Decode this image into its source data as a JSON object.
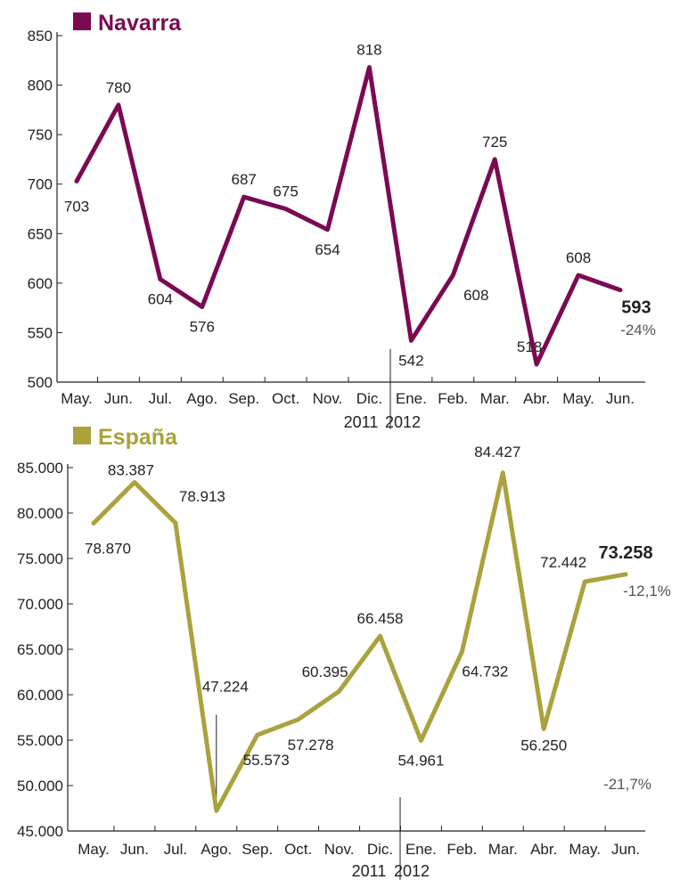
{
  "chart_data": [
    {
      "type": "line",
      "title": "Navarra",
      "color": "#7a0a52",
      "categories": [
        "May.",
        "Jun.",
        "Jul.",
        "Ago.",
        "Sep.",
        "Oct.",
        "Nov.",
        "Dic.",
        "Ene.",
        "Feb.",
        "Mar.",
        "Abr.",
        "May.",
        "Jun."
      ],
      "values": [
        703,
        780,
        604,
        576,
        687,
        675,
        654,
        818,
        542,
        608,
        725,
        518,
        608,
        593
      ],
      "value_labels": [
        "703",
        "780",
        "604",
        "576",
        "687",
        "675",
        "654",
        "818",
        "542",
        "608",
        "725",
        "518",
        "608",
        "593"
      ],
      "yticks": [
        500,
        550,
        600,
        650,
        700,
        750,
        800,
        850
      ],
      "ytick_labels": [
        "500",
        "550",
        "600",
        "650",
        "700",
        "750",
        "800",
        "850"
      ],
      "ylim": [
        500,
        850
      ],
      "years": [
        "2011",
        "2012"
      ],
      "change_labels": [
        "-24%"
      ]
    },
    {
      "type": "line",
      "title": "España",
      "color": "#aaa23c",
      "categories": [
        "May.",
        "Jun.",
        "Jul.",
        "Ago.",
        "Sep.",
        "Oct.",
        "Nov.",
        "Dic.",
        "Ene.",
        "Feb.",
        "Mar.",
        "Abr.",
        "May.",
        "Jun."
      ],
      "values": [
        78870,
        83387,
        78913,
        47224,
        55573,
        57278,
        60395,
        66458,
        54961,
        64732,
        84427,
        56250,
        72442,
        73258
      ],
      "value_labels": [
        "78.870",
        "83.387",
        "78.913",
        "47.224",
        "55.573",
        "57.278",
        "60.395",
        "66.458",
        "54.961",
        "64.732",
        "84.427",
        "56.250",
        "72.442",
        "73.258"
      ],
      "yticks": [
        45000,
        50000,
        55000,
        60000,
        65000,
        70000,
        75000,
        80000,
        85000
      ],
      "ytick_labels": [
        "45.000",
        "50.000",
        "55.000",
        "60.000",
        "65.000",
        "70.000",
        "75.000",
        "80.000",
        "85.000"
      ],
      "ylim": [
        45000,
        85000
      ],
      "years": [
        "2011",
        "2012"
      ],
      "change_labels": [
        "-12,1%",
        "-21,7%"
      ]
    }
  ]
}
